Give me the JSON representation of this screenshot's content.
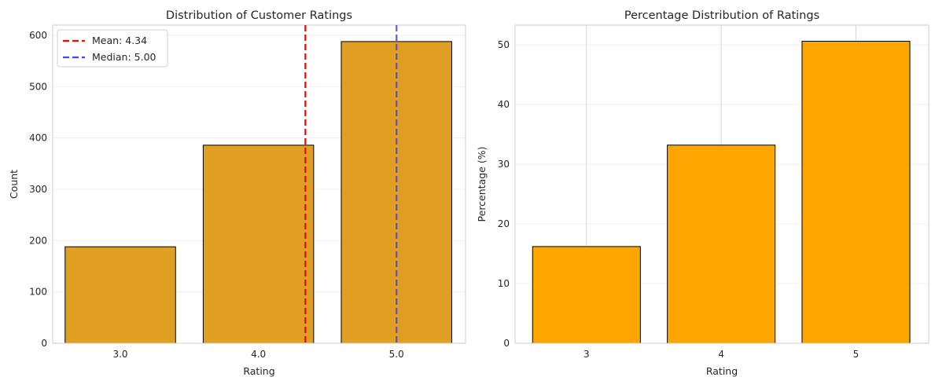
{
  "chart_data": [
    {
      "type": "bar",
      "title": "Distribution of Customer Ratings",
      "xlabel": "Rating",
      "ylabel": "Count",
      "categories": [
        "3.0",
        "4.0",
        "5.0"
      ],
      "values": [
        188,
        386,
        588
      ],
      "ylim": [
        0,
        620
      ],
      "yticks": [
        0,
        100,
        200,
        300,
        400,
        500,
        600
      ],
      "bar_color": "#e09e22",
      "grid": "horizontal",
      "reference_lines": [
        {
          "label": "Mean: 4.34",
          "rating": 4.34,
          "color": "#ff0000",
          "style": "dashed"
        },
        {
          "label": "Median: 5.00",
          "rating": 5.0,
          "color": "#4444ee",
          "style": "dashed"
        }
      ],
      "legend": "top-left"
    },
    {
      "type": "bar",
      "title": "Percentage Distribution of Ratings",
      "xlabel": "Rating",
      "ylabel": "Percentage (%)",
      "categories": [
        "3",
        "4",
        "5"
      ],
      "values": [
        16.2,
        33.2,
        50.6
      ],
      "ylim": [
        0,
        53.3
      ],
      "yticks": [
        0,
        10,
        20,
        30,
        40,
        50
      ],
      "bar_color": "#ffa500",
      "grid": "both"
    }
  ]
}
